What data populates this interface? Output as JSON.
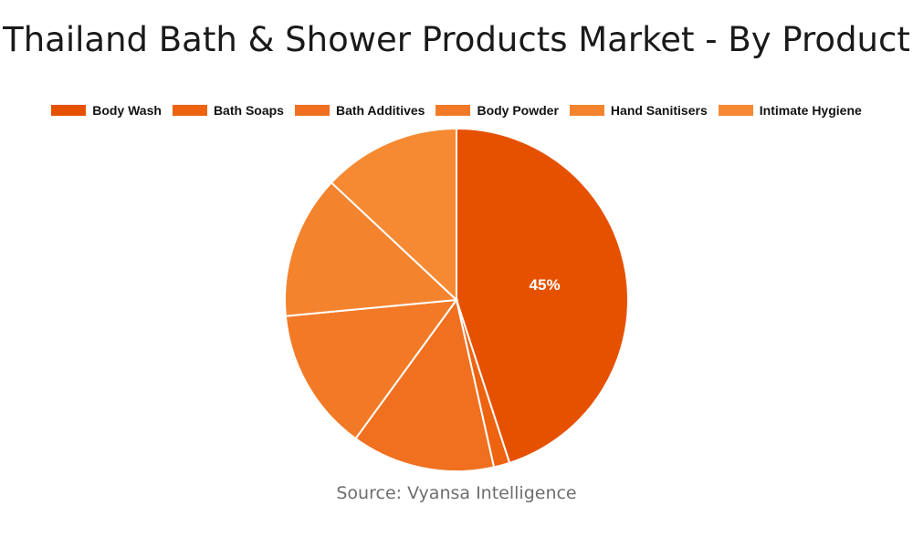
{
  "chart_data": {
    "type": "pie",
    "title": "Thailand Bath & Shower Products Market - By Product",
    "categories": [
      "Body Wash",
      "Bath Soaps",
      "Bath Additives",
      "Body Powder",
      "Hand Sanitisers",
      "Intimate Hygiene"
    ],
    "values": [
      45,
      1.5,
      13.5,
      13.5,
      13.5,
      13
    ],
    "data_labels": [
      "45%",
      "",
      "",
      "",
      "",
      ""
    ],
    "colors": [
      "#E65100",
      "#ED6310",
      "#F07020",
      "#F27A26",
      "#F4832E",
      "#F58A33"
    ],
    "legend_position": "top",
    "grid": false
  },
  "source": "Source: Vyansa Intelligence"
}
